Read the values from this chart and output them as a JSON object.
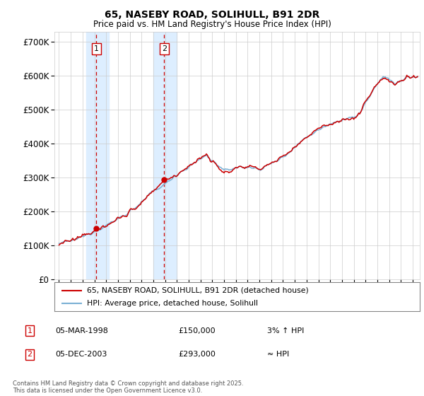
{
  "title": "65, NASEBY ROAD, SOLIHULL, B91 2DR",
  "subtitle": "Price paid vs. HM Land Registry's House Price Index (HPI)",
  "ylabel_ticks": [
    "£0",
    "£100K",
    "£200K",
    "£300K",
    "£400K",
    "£500K",
    "£600K",
    "£700K"
  ],
  "ylim": [
    0,
    730000
  ],
  "xlim_start": 1994.6,
  "xlim_end": 2025.6,
  "sale1_x": 1998.17,
  "sale1_y": 150000,
  "sale1_label": "1",
  "sale2_x": 2003.92,
  "sale2_y": 293000,
  "sale2_label": "2",
  "shade1_x_start": 1997.3,
  "shade1_x_end": 1999.2,
  "shade2_x_start": 2003.0,
  "shade2_x_end": 2005.0,
  "hpi_color": "#7ab0d4",
  "price_color": "#cc0000",
  "sale_marker_color": "#cc0000",
  "sale_box_color": "#cc0000",
  "shade_color": "#ddeeff",
  "grid_color": "#cccccc",
  "legend_line1": "65, NASEBY ROAD, SOLIHULL, B91 2DR (detached house)",
  "legend_line2": "HPI: Average price, detached house, Solihull",
  "annotation1_box": "1",
  "annotation1_date": "05-MAR-1998",
  "annotation1_price": "£150,000",
  "annotation1_hpi": "3% ↑ HPI",
  "annotation2_box": "2",
  "annotation2_date": "05-DEC-2003",
  "annotation2_price": "£293,000",
  "annotation2_hpi": "≈ HPI",
  "footer": "Contains HM Land Registry data © Crown copyright and database right 2025.\nThis data is licensed under the Open Government Licence v3.0.",
  "background_color": "#ffffff"
}
